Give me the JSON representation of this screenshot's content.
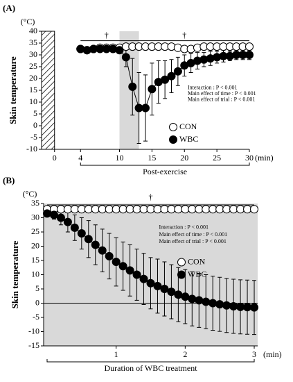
{
  "chart_data": [
    {
      "type": "scatter-line",
      "panel": "(A)",
      "y_unit": "(°C)",
      "ylabel": "Skin temperature",
      "xlabel": "Post-exercise",
      "x_unit": "(min)",
      "x": [
        4,
        5,
        6,
        7,
        8,
        9,
        10,
        11,
        12,
        13,
        14,
        15,
        16,
        17,
        18,
        19,
        20,
        21,
        22,
        23,
        24,
        25,
        26,
        27,
        28,
        29,
        30
      ],
      "series": [
        {
          "name": "CON",
          "color": "#ffffff",
          "values": [
            32.5,
            32,
            32.5,
            33,
            33,
            33,
            33,
            33.5,
            33.5,
            33.5,
            33.5,
            33.5,
            33.5,
            33.5,
            33.5,
            33,
            32.5,
            32.5,
            33,
            33.5,
            33.5,
            33.5,
            33.5,
            33.5,
            33.5,
            33.5,
            33.5
          ]
        },
        {
          "name": "WBC",
          "color": "#000000",
          "values": [
            32.5,
            32,
            32.5,
            32.5,
            32.5,
            32.5,
            32,
            29,
            16.5,
            7.5,
            7.5,
            15.5,
            18.5,
            19.5,
            21,
            23,
            25.5,
            26.5,
            27.5,
            28,
            28.5,
            29,
            29.5,
            29.5,
            30,
            30,
            30
          ],
          "errors": [
            1,
            1,
            1,
            1,
            1,
            1,
            1.5,
            4,
            12,
            15,
            14,
            11,
            9,
            8,
            7,
            6,
            4.5,
            4,
            3.5,
            3,
            3,
            2.5,
            2.5,
            2,
            2,
            2,
            2
          ]
        }
      ],
      "xlim": [
        -2,
        30
      ],
      "xticks": [
        0,
        4,
        10,
        15,
        20,
        25,
        30
      ],
      "ylim": [
        -10,
        40
      ],
      "yticks": [
        -10,
        -5,
        0,
        5,
        10,
        15,
        20,
        25,
        30,
        35,
        40
      ],
      "hatched_region": [
        -2,
        0
      ],
      "shaded_region": [
        10,
        13
      ],
      "bracket": {
        "from": 4,
        "to": 30,
        "y": 36
      },
      "annotations": [
        {
          "text": "†",
          "x": 8,
          "y": 38
        },
        {
          "text": "†",
          "x": 20,
          "y": 38
        },
        {
          "text": "Interaction : P < 0.001",
          "x": 20.5,
          "y": 16
        },
        {
          "text": "Main effect of time : P < 0.001",
          "x": 20.5,
          "y": 13.5
        },
        {
          "text": "Main effect of trial : P < 0.001",
          "x": 20.5,
          "y": 11
        }
      ],
      "legend_loc": "lower right"
    },
    {
      "type": "scatter-line",
      "panel": "(B)",
      "y_unit": "(°C)",
      "ylabel": "Skin temperature",
      "xlabel": "Duration of WBC treatment",
      "x_unit": "(min)",
      "x": [
        0,
        0.1,
        0.2,
        0.3,
        0.4,
        0.5,
        0.6,
        0.7,
        0.8,
        0.9,
        1,
        1.1,
        1.2,
        1.3,
        1.4,
        1.5,
        1.6,
        1.7,
        1.8,
        1.9,
        2,
        2.1,
        2.2,
        2.3,
        2.4,
        2.5,
        2.6,
        2.7,
        2.8,
        2.9,
        3
      ],
      "series": [
        {
          "name": "CON",
          "color": "#ffffff",
          "values": [
            33,
            33,
            33,
            33,
            33,
            33,
            33,
            33,
            33,
            33,
            33,
            33,
            33,
            33,
            33,
            33,
            33,
            33,
            33,
            33,
            33,
            33,
            33,
            33,
            33,
            33,
            33,
            33,
            33,
            33,
            33
          ]
        },
        {
          "name": "WBC",
          "color": "#000000",
          "values": [
            31.5,
            31,
            30,
            28.5,
            26.5,
            24.5,
            22.5,
            20.5,
            18.5,
            16.5,
            14.5,
            13,
            11.5,
            10,
            8.5,
            7,
            6,
            5,
            4,
            3,
            2.3,
            1.5,
            1,
            0.5,
            0,
            -0.4,
            -0.8,
            -1.1,
            -1.3,
            -1.4,
            -1.5
          ],
          "errors": [
            1,
            1.5,
            2.5,
            3.5,
            4.5,
            5.5,
            6.5,
            7,
            7.5,
            8,
            8.5,
            8.5,
            9,
            9,
            9,
            9,
            9.5,
            9.5,
            9.5,
            9.5,
            9.5,
            9.5,
            9.5,
            9.5,
            9.5,
            9.5,
            9.5,
            9.5,
            9.5,
            9.5,
            9.5
          ]
        }
      ],
      "xlim": [
        -0.05,
        3.05
      ],
      "xticks": [
        1,
        2,
        3
      ],
      "ylim": [
        -15,
        35
      ],
      "yticks": [
        -15,
        -10,
        -5,
        0,
        5,
        10,
        15,
        20,
        25,
        30,
        35
      ],
      "shaded_region": [
        -0.05,
        3.05
      ],
      "reference_line": 0,
      "bracket": {
        "from": 0,
        "to": 3,
        "y": 34.5
      },
      "annotations": [
        {
          "text": "†",
          "x": 1.5,
          "y": 37
        },
        {
          "text": "Interaction : P < 0.001",
          "x": 1.62,
          "y": 26.5
        },
        {
          "text": "Main effect of time : P < 0.001",
          "x": 1.62,
          "y": 24
        },
        {
          "text": "Main effect of trial : P < 0.001",
          "x": 1.62,
          "y": 21.5
        }
      ],
      "legend_loc": "center right"
    }
  ]
}
